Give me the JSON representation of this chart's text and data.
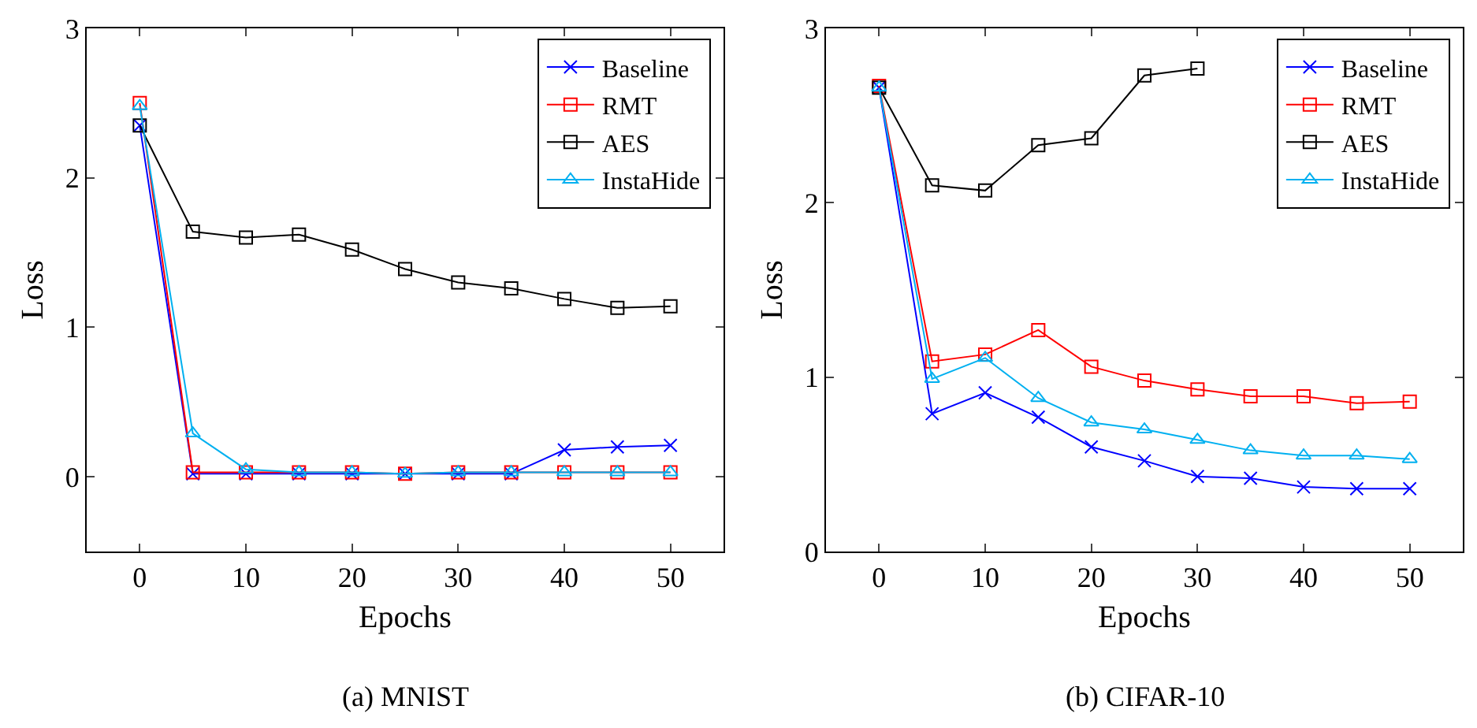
{
  "chart_data": [
    {
      "type": "line",
      "xlabel": "Epochs",
      "ylabel": "Loss",
      "annotations": [
        "(a) MNIST"
      ],
      "x": [
        0,
        5,
        10,
        15,
        20,
        25,
        30,
        35,
        40,
        45,
        50
      ],
      "xlim": [
        -5,
        55
      ],
      "xticks": [
        0,
        10,
        20,
        30,
        40,
        50
      ],
      "ylim": [
        -0.5,
        3
      ],
      "yticks": [
        0,
        1,
        2,
        3
      ],
      "grid": false,
      "legend": "top right",
      "line_style": "solid",
      "series": [
        {
          "name": "Baseline",
          "color": "#0000ff",
          "marker": "cross",
          "values": [
            2.35,
            0.02,
            0.02,
            0.02,
            0.02,
            0.02,
            0.02,
            0.02,
            0.18,
            0.2,
            0.21
          ]
        },
        {
          "name": "RMT",
          "color": "#ff0000",
          "marker": "square",
          "values": [
            2.5,
            0.03,
            0.03,
            0.03,
            0.03,
            0.02,
            0.03,
            0.03,
            0.03,
            0.03,
            0.03
          ]
        },
        {
          "name": "AES",
          "color": "#000000",
          "marker": "square",
          "values": [
            2.35,
            1.64,
            1.6,
            1.62,
            1.52,
            1.39,
            1.3,
            1.26,
            1.19,
            1.13,
            1.14
          ]
        },
        {
          "name": "InstaHide",
          "color": "#00b0f0",
          "marker": "triangle",
          "values": [
            2.48,
            0.29,
            0.05,
            0.03,
            0.03,
            0.02,
            0.03,
            0.03,
            0.03,
            0.03,
            0.03
          ]
        }
      ]
    },
    {
      "type": "line",
      "xlabel": "Epochs",
      "ylabel": "Loss",
      "annotations": [
        "(b) CIFAR-10"
      ],
      "x": [
        0,
        5,
        10,
        15,
        20,
        25,
        30,
        35,
        40,
        45,
        50
      ],
      "xlim": [
        -5,
        55
      ],
      "xticks": [
        0,
        10,
        20,
        30,
        40,
        50
      ],
      "ylim": [
        0,
        3
      ],
      "yticks": [
        0,
        1,
        2,
        3
      ],
      "grid": false,
      "legend": "top right",
      "line_style": "solid",
      "series": [
        {
          "name": "Baseline",
          "color": "#0000ff",
          "marker": "cross",
          "values": [
            2.66,
            0.79,
            0.91,
            0.77,
            0.6,
            0.52,
            0.43,
            0.42,
            0.37,
            0.36,
            0.36
          ]
        },
        {
          "name": "RMT",
          "color": "#ff0000",
          "marker": "square",
          "values": [
            2.67,
            1.09,
            1.13,
            1.27,
            1.06,
            0.98,
            0.93,
            0.89,
            0.89,
            0.85,
            0.86
          ]
        },
        {
          "name": "AES",
          "color": "#000000",
          "marker": "square",
          "values": [
            2.66,
            2.1,
            2.07,
            2.33,
            2.37,
            2.73,
            2.77,
            null,
            null,
            null,
            null
          ]
        },
        {
          "name": "InstaHide",
          "color": "#00b0f0",
          "marker": "triangle",
          "values": [
            2.66,
            0.99,
            1.11,
            0.88,
            0.74,
            0.7,
            0.64,
            0.58,
            0.55,
            0.55,
            0.53
          ]
        }
      ]
    }
  ]
}
